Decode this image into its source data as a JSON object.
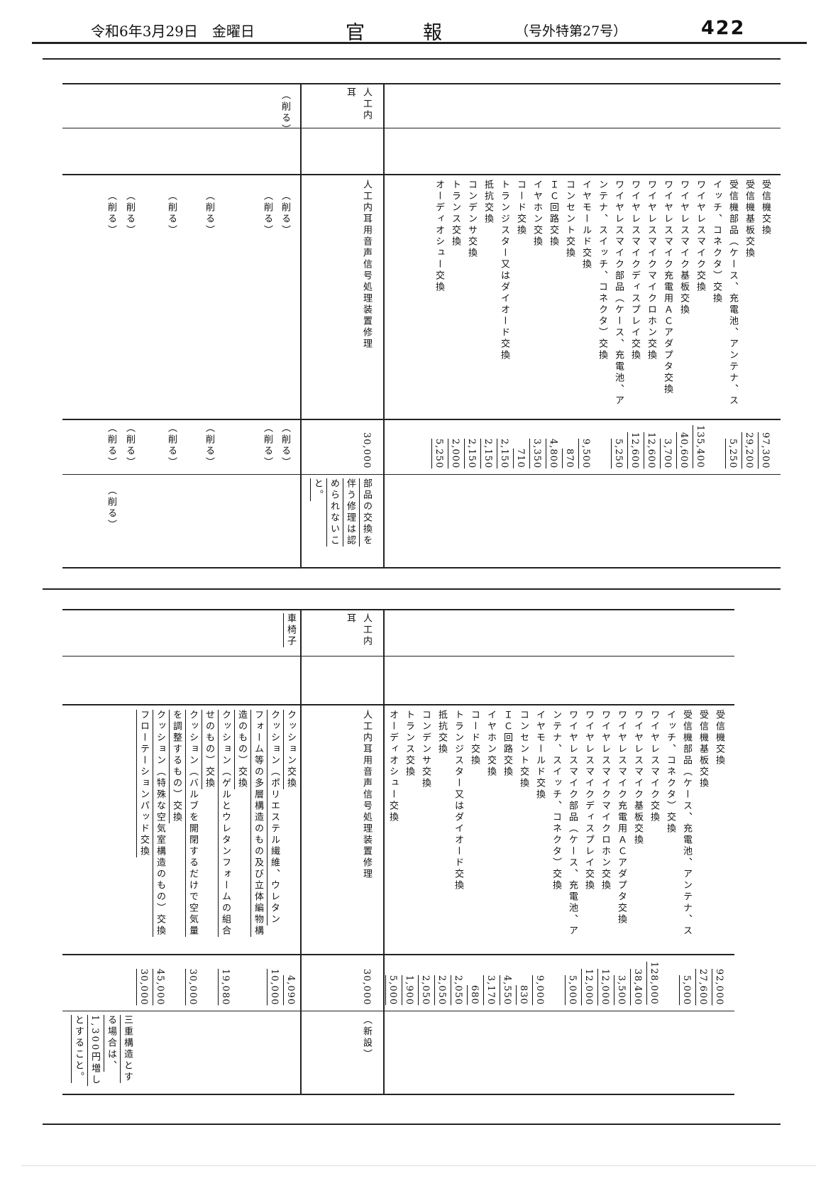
{
  "header": {
    "date": "令和6年3月29日",
    "weekday": "金曜日",
    "title": "官報",
    "issue": "（号外特第27号）",
    "page_number": "422"
  },
  "deleted_label": "（削る）",
  "upper_table": {
    "group1": {
      "rows": [
        {
          "cols": [
            "受信機交換"
          ],
          "price": "97,300"
        },
        {
          "cols": [
            "受信機基板交換"
          ],
          "price": "29,200"
        },
        {
          "cols": [
            "受信機部品（ケース、充電池、アンテナ、ス",
            "イッチ、コネクタ）交換"
          ],
          "price": "5,250"
        },
        {
          "cols": [
            "ワイヤレスマイク交換"
          ],
          "price": "135,400"
        },
        {
          "cols": [
            "ワイヤレスマイク基板交換"
          ],
          "price": "40,600"
        },
        {
          "cols": [
            "ワイヤレスマイク充電用ＡＣアダプタ交換"
          ],
          "price": "3,700"
        },
        {
          "cols": [
            "ワイヤレスマイクマイクロホン交換"
          ],
          "price": "12,600"
        },
        {
          "cols": [
            "ワイヤレスマイクディスプレイ交換"
          ],
          "price": "12,600"
        },
        {
          "cols": [
            "ワイヤレスマイク部品（ケース、充電池、ア",
            "ンテナ、スイッチ、コネクタ）交換"
          ],
          "price": "5,250"
        },
        {
          "cols": [
            "イヤモールド交換"
          ],
          "price": "9,500"
        },
        {
          "cols": [
            "コンセント交換"
          ],
          "price": "870"
        },
        {
          "cols": [
            "ＩＣ回路交換"
          ],
          "price": "4,800"
        },
        {
          "cols": [
            "イヤホン交換"
          ],
          "price": "3,350"
        },
        {
          "cols": [
            "コード交換"
          ],
          "price": "710"
        },
        {
          "cols": [
            "トランジスター又はダイオード交換"
          ],
          "price": "2,150"
        },
        {
          "cols": [
            "抵抗交換"
          ],
          "price": "2,150"
        },
        {
          "cols": [
            "コンデンサ交換"
          ],
          "price": "2,150"
        },
        {
          "cols": [
            "トランス交換"
          ],
          "price": "2,000"
        },
        {
          "cols": [
            "オーディオシュー交換"
          ],
          "price": "5,250"
        }
      ]
    },
    "group2": {
      "name_cols": [
        "人工内",
        "耳"
      ],
      "item": "人工内耳用音声信号処理装置修理",
      "price": "30,000",
      "note_cols": [
        "部品の交換を",
        "伴う修理は認",
        "められないこ",
        "と。"
      ]
    },
    "group3": {
      "name": "（削る）",
      "deleted_row_count": 6,
      "note": "（削る）"
    }
  },
  "lower_table": {
    "group1": {
      "rows": [
        {
          "cols": [
            "受信機交換"
          ],
          "price": "92,000"
        },
        {
          "cols": [
            "受信機基板交換"
          ],
          "price": "27,600"
        },
        {
          "cols": [
            "受信機部品（ケース、充電池、アンテナ、ス",
            "イッチ、コネクタ）交換"
          ],
          "price": "5,000"
        },
        {
          "cols": [
            "ワイヤレスマイク交換"
          ],
          "price": "128,000"
        },
        {
          "cols": [
            "ワイヤレスマイク基板交換"
          ],
          "price": "38,400"
        },
        {
          "cols": [
            "ワイヤレスマイク充電用ＡＣアダプタ交換"
          ],
          "price": "3,500"
        },
        {
          "cols": [
            "ワイヤレスマイクマイクロホン交換"
          ],
          "price": "12,000"
        },
        {
          "cols": [
            "ワイヤレスマイクディスプレイ交換"
          ],
          "price": "12,000"
        },
        {
          "cols": [
            "ワイヤレスマイク部品（ケース、充電池、ア",
            "ンテナ、スイッチ、コネクタ）交換"
          ],
          "price": "5,000"
        },
        {
          "cols": [
            "イヤモールド交換"
          ],
          "price": "9,000"
        },
        {
          "cols": [
            "コンセント交換"
          ],
          "price": "830"
        },
        {
          "cols": [
            "ＩＣ回路交換"
          ],
          "price": "4,550"
        },
        {
          "cols": [
            "イヤホン交換"
          ],
          "price": "3,170"
        },
        {
          "cols": [
            "コード交換"
          ],
          "price": "680"
        },
        {
          "cols": [
            "トランジスター又はダイオード交換"
          ],
          "price": "2,050"
        },
        {
          "cols": [
            "抵抗交換"
          ],
          "price": "2,050"
        },
        {
          "cols": [
            "コンデンサ交換"
          ],
          "price": "2,050"
        },
        {
          "cols": [
            "トランス交換"
          ],
          "price": "1,900"
        },
        {
          "cols": [
            "オーディオシュー交換"
          ],
          "price": "5,000"
        }
      ]
    },
    "group2": {
      "name_cols": [
        "人工内",
        "耳"
      ],
      "item": "人工内耳用音声信号処理装置修理",
      "price": "30,000",
      "note": "（新設）"
    },
    "group3": {
      "name": "車椅子",
      "rows": [
        {
          "cols": [
            "クッション交換"
          ],
          "price": "4,090"
        },
        {
          "cols": [
            "クッション（ポリエステル繊維、ウレタン",
            "フォーム等の多層構造のもの及び立体編物構",
            "造のもの）交換"
          ],
          "price": "10,000"
        },
        {
          "cols": [
            "クッション（ゲルとウレタンフォームの組合",
            "せのもの）交換"
          ],
          "price": "19,080"
        },
        {
          "cols": [
            "クッション（バルブを開閉するだけで空気量",
            "を調整するもの）交換"
          ],
          "price": "30,000"
        },
        {
          "cols": [
            "クッション（特殊な空気室構造のもの）交換"
          ],
          "price": "45,000"
        },
        {
          "cols": [
            "フローテーションパッド交換"
          ],
          "price": "30,000"
        }
      ],
      "note_cols": [
        "三重構造とす",
        "る場合は、",
        "1,300円増し",
        "とすること。"
      ]
    }
  }
}
